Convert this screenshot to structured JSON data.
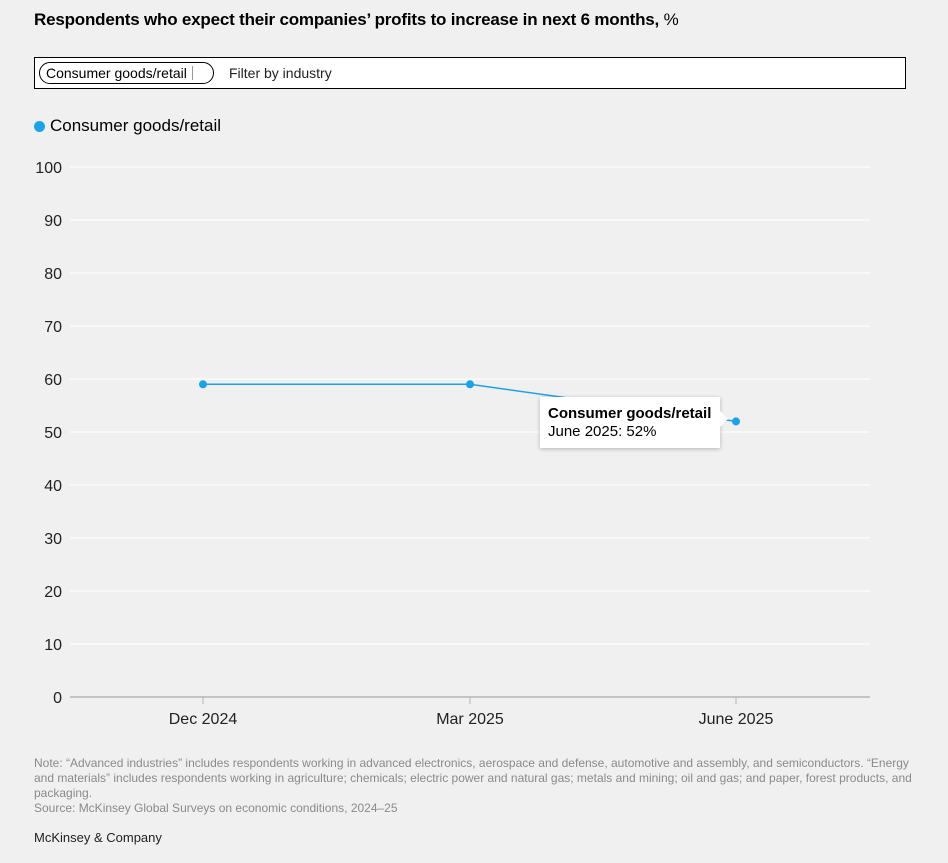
{
  "header": {
    "title": "Respondents who expect their companies’ profits to increase in next 6 months,",
    "unit": "%"
  },
  "filter": {
    "selected": "Consumer goods/retail",
    "placeholder": "Filter by industry"
  },
  "legend": {
    "label": "Consumer goods/retail",
    "color": "#1aa3e8"
  },
  "tooltip": {
    "series": "Consumer goods/retail",
    "value_text": "June 2025: 52%"
  },
  "chart_data": {
    "type": "line",
    "categories": [
      "Dec 2024",
      "Mar 2025",
      "June 2025"
    ],
    "series": [
      {
        "name": "Consumer goods/retail",
        "values": [
          59,
          59,
          52
        ],
        "color": "#1aa3e8"
      }
    ],
    "ylim": [
      0,
      100
    ],
    "yticks": [
      0,
      10,
      20,
      30,
      40,
      50,
      60,
      70,
      80,
      90,
      100
    ],
    "grid": true,
    "legend": "top-left"
  },
  "footer": {
    "note": "Note: “Advanced industries” includes respondents working in advanced electronics, aerospace and defense, automotive and assembly, and semiconductors. “Energy and materials” includes respondents working in agriculture; chemicals; electric power and natural gas; metals and mining; oil and gas; and paper, forest products, and packaging.",
    "source": "Source: McKinsey Global Surveys on economic conditions, 2024–25",
    "brand": "McKinsey & Company"
  }
}
